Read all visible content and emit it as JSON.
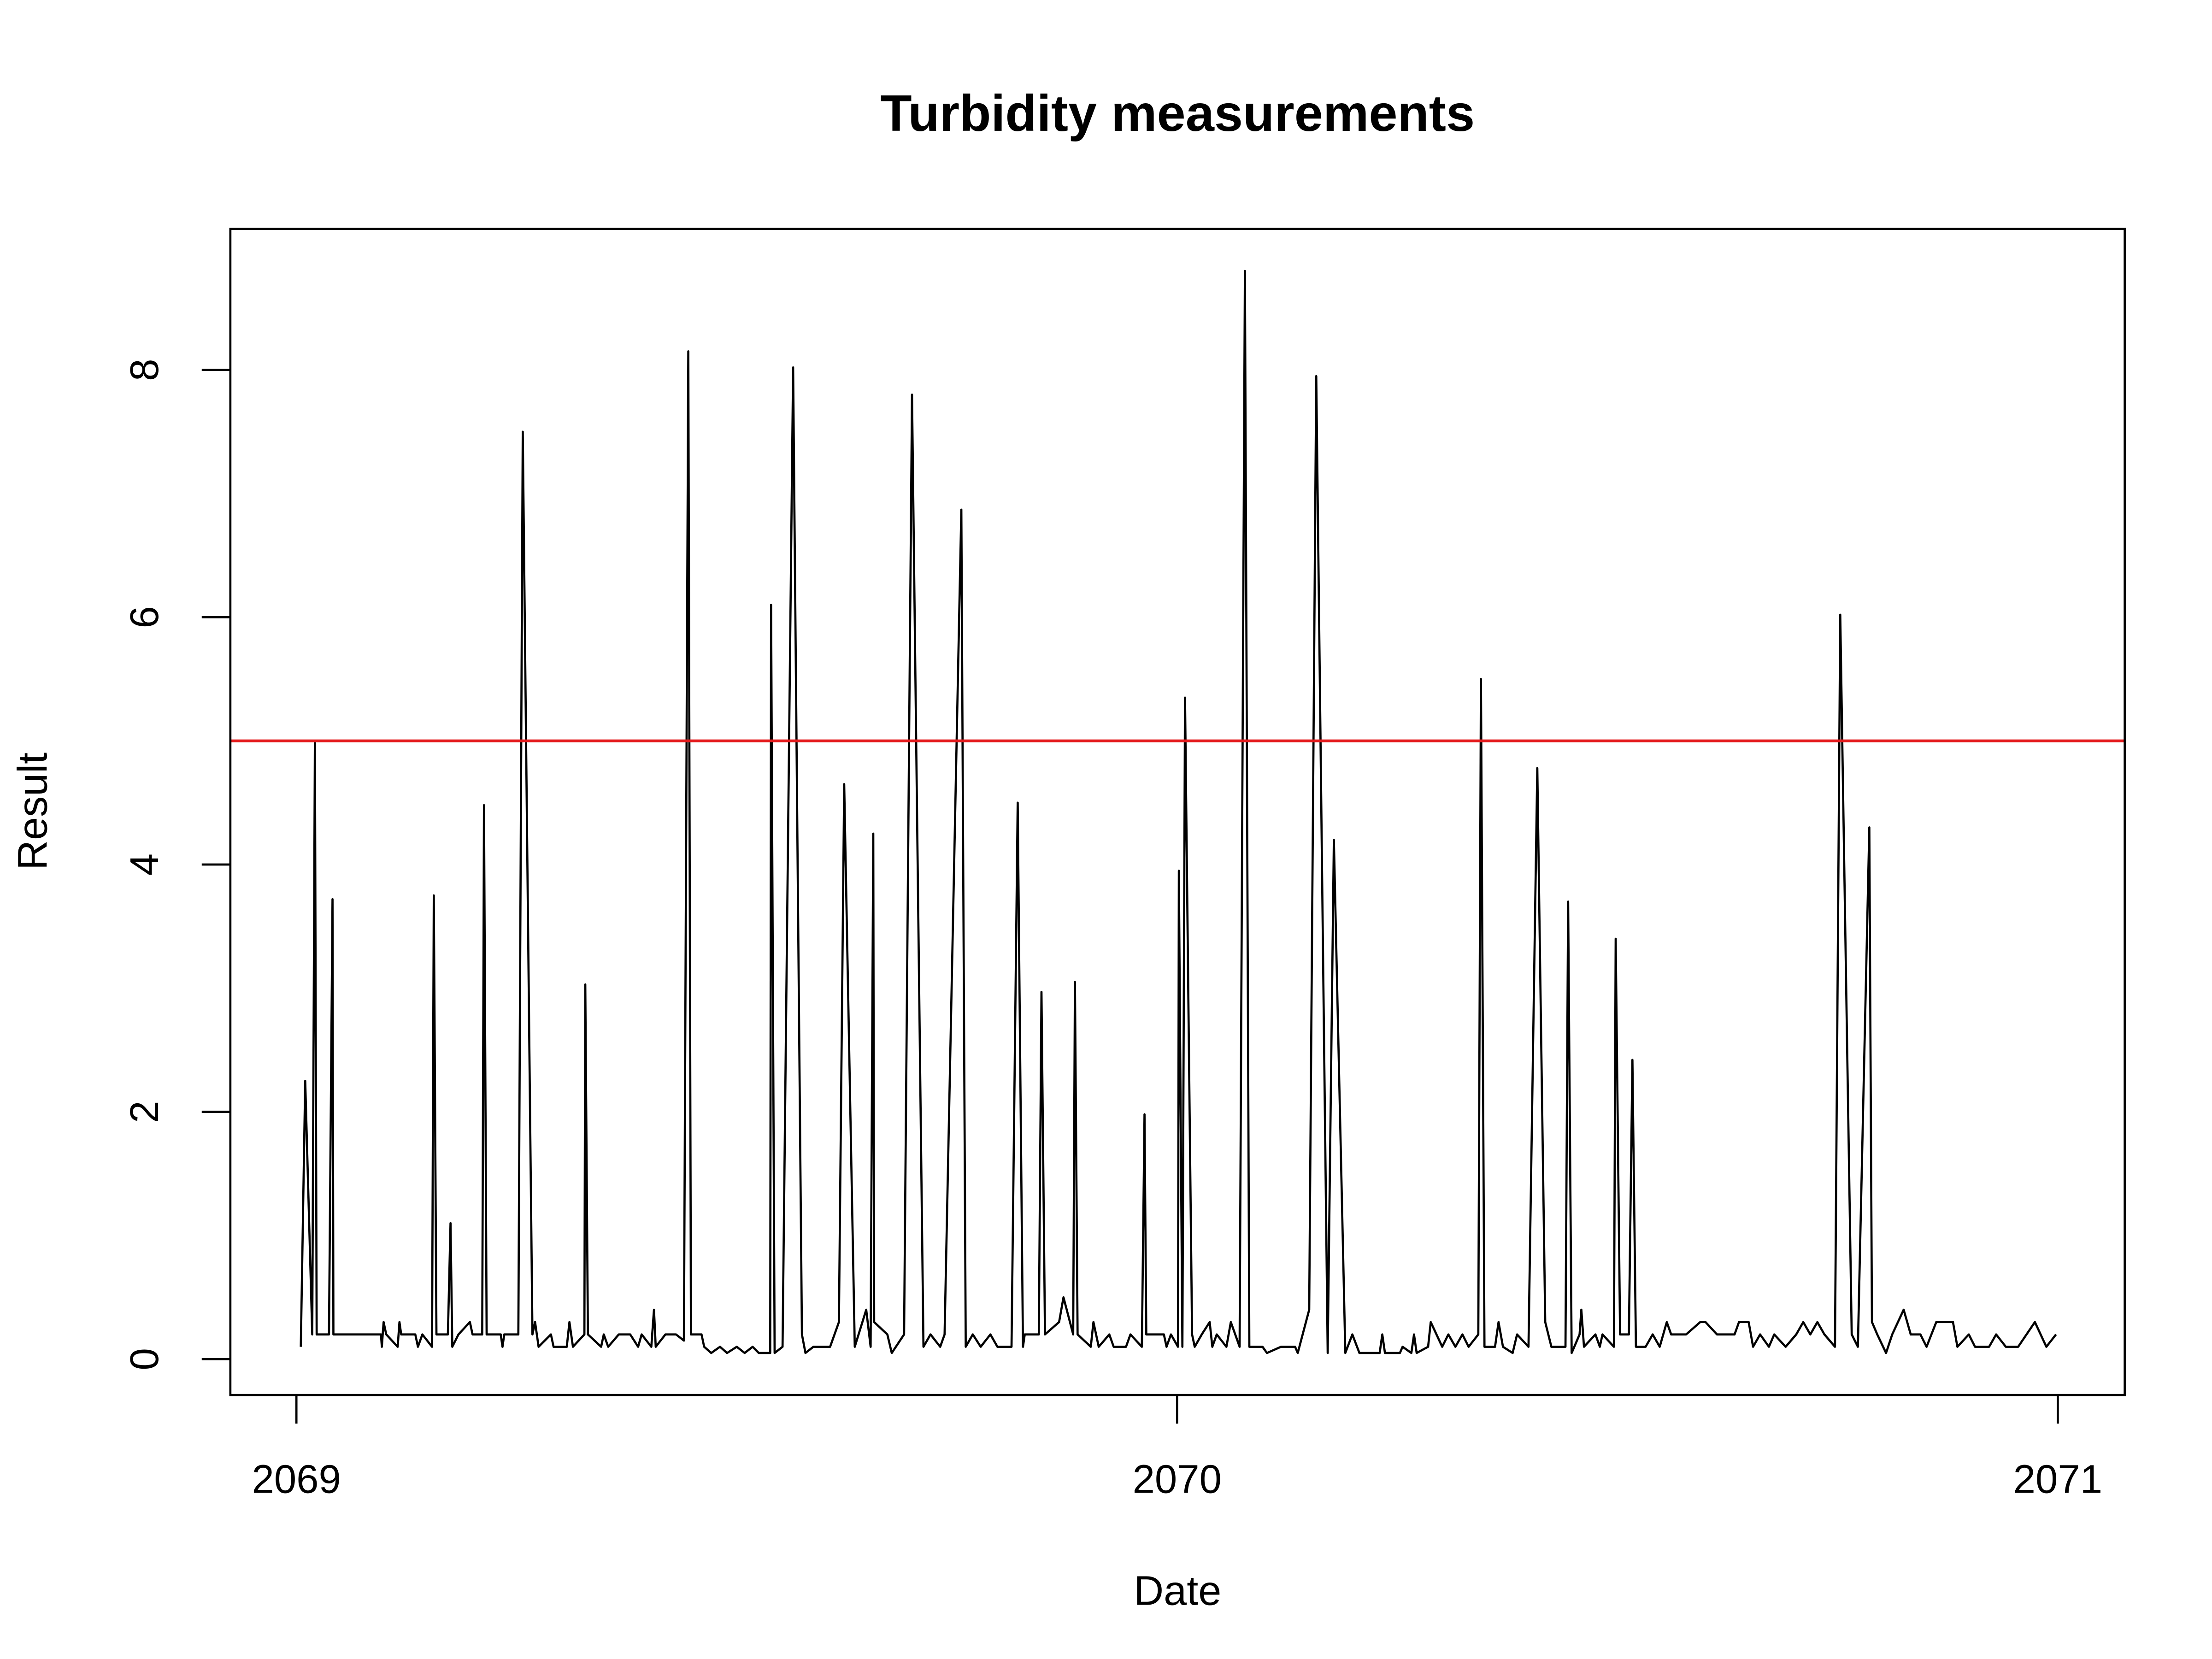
{
  "chart_data": {
    "type": "line",
    "title": "Turbidity measurements",
    "xlabel": "Date",
    "ylabel": "Result",
    "color": "#000000",
    "x": [
      2069.005,
      2069.01,
      2069.018,
      2069.021,
      2069.023,
      2069.037,
      2069.041,
      2069.042,
      2069.096,
      2069.097,
      2069.099,
      2069.102,
      2069.115,
      2069.117,
      2069.119,
      2069.135,
      2069.138,
      2069.143,
      2069.154,
      2069.156,
      2069.159,
      2069.172,
      2069.175,
      2069.177,
      2069.184,
      2069.197,
      2069.2,
      2069.211,
      2069.213,
      2069.216,
      2069.232,
      2069.234,
      2069.236,
      2069.252,
      2069.257,
      2069.268,
      2069.271,
      2069.275,
      2069.289,
      2069.292,
      2069.307,
      2069.31,
      2069.314,
      2069.327,
      2069.328,
      2069.331,
      2069.346,
      2069.349,
      2069.354,
      2069.366,
      2069.379,
      2069.388,
      2069.392,
      2069.403,
      2069.406,
      2069.408,
      2069.419,
      2069.431,
      2069.44,
      2069.445,
      2069.448,
      2069.46,
      2069.463,
      2069.471,
      2069.481,
      2069.489,
      2069.5,
      2069.509,
      2069.518,
      2069.525,
      2069.538,
      2069.539,
      2069.543,
      2069.552,
      2069.564,
      2069.574,
      2069.578,
      2069.587,
      2069.598,
      2069.606,
      2069.616,
      2069.622,
      2069.634,
      2069.647,
      2069.652,
      2069.655,
      2069.656,
      2069.671,
      2069.676,
      2069.69,
      2069.699,
      2069.712,
      2069.72,
      2069.731,
      2069.736,
      2069.755,
      2069.76,
      2069.768,
      2069.777,
      2069.788,
      2069.796,
      2069.812,
      2069.819,
      2069.825,
      2069.827,
      2069.843,
      2069.846,
      2069.85,
      2069.866,
      2069.871,
      2069.882,
      2069.884,
      2069.887,
      2069.902,
      2069.905,
      2069.911,
      2069.923,
      2069.928,
      2069.942,
      2069.947,
      2069.96,
      2069.963,
      2069.965,
      2069.985,
      2069.988,
      2069.993,
      2070.001,
      2070.002,
      2070.006,
      2070.009,
      2070.017,
      2070.02,
      2070.028,
      2070.037,
      2070.04,
      2070.045,
      2070.056,
      2070.061,
      2070.071,
      2070.077,
      2070.082,
      2070.097,
      2070.102,
      2070.118,
      2070.134,
      2070.137,
      2070.15,
      2070.158,
      2070.171,
      2070.178,
      2070.191,
      2070.199,
      2070.207,
      2070.23,
      2070.233,
      2070.236,
      2070.253,
      2070.256,
      2070.266,
      2070.269,
      2070.272,
      2070.285,
      2070.288,
      2070.301,
      2070.308,
      2070.316,
      2070.324,
      2070.331,
      2070.342,
      2070.345,
      2070.349,
      2070.361,
      2070.365,
      2070.37,
      2070.381,
      2070.386,
      2070.399,
      2070.409,
      2070.418,
      2070.425,
      2070.441,
      2070.444,
      2070.448,
      2070.457,
      2070.459,
      2070.462,
      2070.475,
      2070.48,
      2070.483,
      2070.496,
      2070.498,
      2070.503,
      2070.513,
      2070.517,
      2070.521,
      2070.532,
      2070.54,
      2070.548,
      2070.556,
      2070.561,
      2070.578,
      2070.594,
      2070.6,
      2070.613,
      2070.633,
      2070.638,
      2070.649,
      2070.654,
      2070.662,
      2070.672,
      2070.678,
      2070.691,
      2070.703,
      2070.711,
      2070.719,
      2070.727,
      2070.735,
      2070.747,
      2070.753,
      2070.766,
      2070.773,
      2070.786,
      2070.789,
      2070.795,
      2070.805,
      2070.812,
      2070.825,
      2070.833,
      2070.844,
      2070.851,
      2070.862,
      2070.881,
      2070.886,
      2070.899,
      2070.906,
      2070.922,
      2070.93,
      2070.941,
      2070.955,
      2070.974,
      2070.987,
      2070.998
    ],
    "values": [
      0.1,
      2.25,
      0.2,
      5.0,
      0.2,
      0.2,
      3.72,
      0.2,
      0.2,
      0.1,
      0.3,
      0.2,
      0.1,
      0.3,
      0.2,
      0.2,
      0.1,
      0.2,
      0.1,
      3.75,
      0.2,
      0.2,
      1.1,
      0.1,
      0.2,
      0.3,
      0.2,
      0.2,
      4.48,
      0.2,
      0.2,
      0.1,
      0.2,
      0.2,
      7.5,
      0.2,
      0.3,
      0.1,
      0.2,
      0.1,
      0.1,
      0.3,
      0.1,
      0.2,
      3.03,
      0.2,
      0.1,
      0.2,
      0.1,
      0.2,
      0.2,
      0.1,
      0.2,
      0.1,
      0.4,
      0.1,
      0.2,
      0.2,
      0.15,
      8.15,
      0.2,
      0.2,
      0.1,
      0.05,
      0.1,
      0.05,
      0.1,
      0.05,
      0.1,
      0.05,
      0.05,
      6.1,
      0.05,
      0.1,
      8.02,
      0.2,
      0.05,
      0.1,
      0.1,
      0.1,
      0.3,
      4.65,
      0.1,
      0.4,
      0.1,
      4.25,
      0.3,
      0.2,
      0.05,
      0.2,
      7.8,
      0.1,
      0.2,
      0.1,
      0.2,
      6.87,
      0.1,
      0.2,
      0.1,
      0.2,
      0.1,
      0.1,
      4.5,
      0.1,
      0.2,
      0.2,
      2.97,
      0.2,
      0.3,
      0.5,
      0.2,
      3.05,
      0.2,
      0.1,
      0.3,
      0.1,
      0.2,
      0.1,
      0.1,
      0.2,
      0.1,
      1.98,
      0.2,
      0.2,
      0.1,
      0.2,
      0.1,
      3.95,
      0.1,
      5.35,
      0.2,
      0.1,
      0.2,
      0.3,
      0.1,
      0.2,
      0.1,
      0.3,
      0.1,
      8.8,
      0.1,
      0.1,
      0.05,
      0.1,
      0.1,
      0.05,
      0.4,
      7.95,
      0.05,
      4.2,
      0.05,
      0.2,
      0.05,
      0.05,
      0.2,
      0.05,
      0.05,
      0.1,
      0.05,
      0.2,
      0.05,
      0.1,
      0.3,
      0.1,
      0.2,
      0.1,
      0.2,
      0.1,
      0.2,
      5.5,
      0.1,
      0.1,
      0.3,
      0.1,
      0.05,
      0.2,
      0.1,
      4.78,
      0.3,
      0.1,
      0.1,
      3.7,
      0.05,
      0.2,
      0.4,
      0.1,
      0.2,
      0.1,
      0.2,
      0.1,
      3.4,
      0.2,
      0.2,
      2.42,
      0.1,
      0.1,
      0.2,
      0.1,
      0.3,
      0.2,
      0.2,
      0.3,
      0.3,
      0.2,
      0.2,
      0.3,
      0.3,
      0.1,
      0.2,
      0.1,
      0.2,
      0.1,
      0.2,
      0.3,
      0.2,
      0.3,
      0.2,
      0.1,
      6.02,
      0.2,
      0.1,
      4.3,
      0.3,
      0.2,
      0.05,
      0.2,
      0.4,
      0.2,
      0.2,
      0.1,
      0.3,
      0.3,
      0.1,
      0.2,
      0.1,
      0.1,
      0.2,
      0.1,
      0.1,
      0.3,
      0.1,
      0.2
    ],
    "xlim": [
      2068.925,
      2071.076
    ],
    "ylim": [
      -0.29,
      9.14
    ],
    "xticks": [
      2069,
      2070,
      2071
    ],
    "yticks": [
      0,
      2,
      4,
      6,
      8
    ],
    "hline": {
      "value": 5,
      "color": "#e41a1c"
    }
  }
}
